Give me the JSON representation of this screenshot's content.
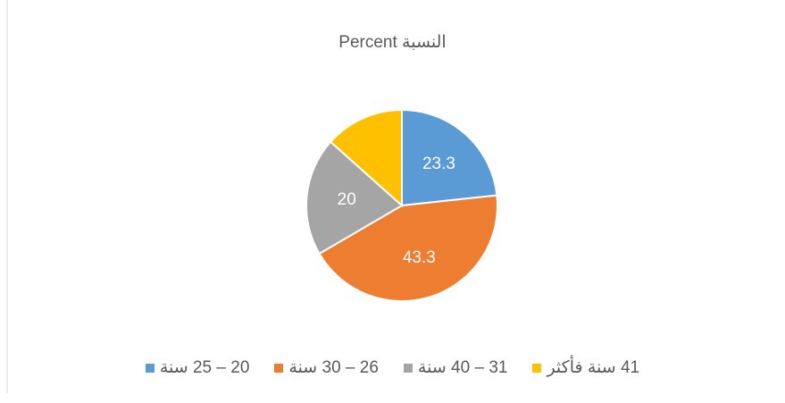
{
  "chart_data": {
    "type": "pie",
    "title": "النسبة Percent",
    "categories": [
      "20 – 25 سنة",
      "26 – 30 سنة",
      "31 – 40 سنة",
      "41 سنة فأكثر"
    ],
    "values": [
      23.3,
      43.3,
      20,
      13.4
    ],
    "value_labels": [
      "23.3",
      "43.3",
      "20",
      null
    ],
    "colors": [
      "#5b9bd5",
      "#ed7d31",
      "#a5a5a5",
      "#ffc000"
    ],
    "legend": "bottom"
  }
}
